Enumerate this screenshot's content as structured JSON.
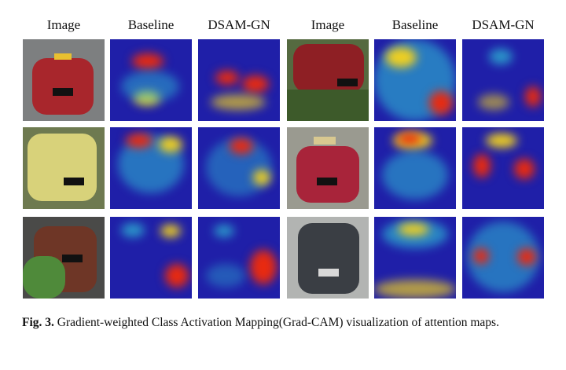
{
  "column_headers": [
    "Image",
    "Baseline",
    "DSAM-GN",
    "Image",
    "Baseline",
    "DSAM-GN"
  ],
  "rows": [
    {
      "left": "red taxi rear view",
      "right": "red car side view"
    },
    {
      "left": "yellow car rear view",
      "right": "red taxi front view"
    },
    {
      "left": "brown car rear view with plant",
      "right": "dark sedan front view"
    }
  ],
  "caption": {
    "label": "Fig. 3.",
    "text": "Gradient-weighted Class Activation Mapping(Grad-CAM) visualization of attention maps."
  },
  "colors": {
    "cam_base": "#1f1fa8",
    "hot": "#e82a10",
    "warm": "#f0d020",
    "cool": "#30c8d8"
  }
}
